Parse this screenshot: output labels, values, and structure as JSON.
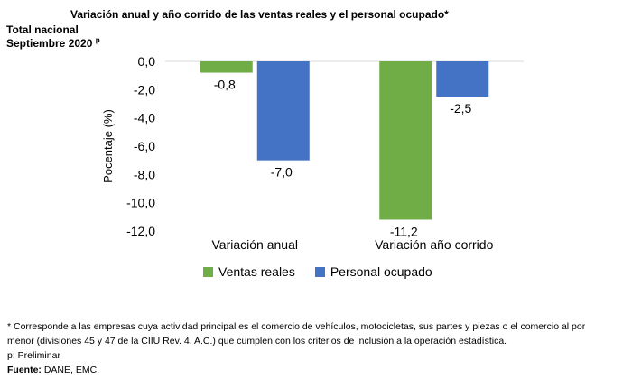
{
  "header": {
    "title": "Variación anual y año corrido de las ventas reales y el personal ocupado*",
    "subtitle_line1": "Total nacional",
    "subtitle_line2": "Septiembre 2020",
    "subtitle_sup": "p"
  },
  "chart_data": {
    "type": "bar",
    "categories": [
      "Variación anual",
      "Variación año corrido"
    ],
    "series": [
      {
        "name": "Ventas reales",
        "values": [
          -0.8,
          -11.2
        ],
        "labels": [
          "-0,8",
          "-11,2"
        ],
        "color": "#70ad47"
      },
      {
        "name": "Personal ocupado",
        "values": [
          -7.0,
          -2.5
        ],
        "labels": [
          "-7,0",
          "-2,5"
        ],
        "color": "#4472c4"
      }
    ],
    "ylabel": "Pocentaje (%)",
    "ylim": [
      -12,
      0
    ],
    "yticks": [
      0,
      -2,
      -4,
      -6,
      -8,
      -10,
      -12
    ],
    "ytick_labels": [
      "0,0",
      "-2,0",
      "-4,0",
      "-6,0",
      "-8,0",
      "-10,0",
      "-12,0"
    ],
    "grid": false,
    "legend_position": "bottom"
  },
  "footnotes": {
    "line1": "* Corresponde a las empresas cuya actividad principal es el comercio de vehículos, motocicletas, sus partes y piezas o el comercio al por",
    "line2": "menor (divisiones 45 y 47 de la CIIU Rev. 4. A.C.) que cumplen con los criterios de inclusión a la operación estadística.",
    "line3": "p: Preliminar",
    "source_label": "Fuente:",
    "source_text": " DANE, EMC."
  }
}
